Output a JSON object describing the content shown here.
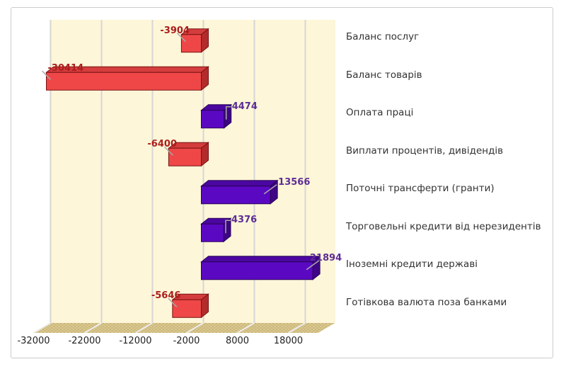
{
  "chart_data": {
    "type": "bar",
    "orientation": "horizontal",
    "style_3d": true,
    "title": "",
    "legend": "none",
    "grid": "vertical-gridlines",
    "categories": [
      "Баланс послуг",
      "Баланс товарів",
      "Оплата праці",
      "Виплати процентів, дивідендів",
      "Поточні трансферти (гранти)",
      "Торговельні кредити від нерезидентів",
      "Іноземні кредити державі",
      "Готівкова валюта поза банками"
    ],
    "values": [
      -3904,
      -30414,
      4474,
      -6400,
      13566,
      4376,
      21894,
      -5646
    ],
    "value_labels": [
      "-3904",
      "-30414",
      "4474",
      "-6400",
      "13566",
      "4376",
      "21894",
      "-5646"
    ],
    "x_ticks": [
      -32000,
      -22000,
      -12000,
      -2000,
      8000,
      18000
    ],
    "x_tick_labels": [
      "-32000",
      "-22000",
      "-12000",
      "-2000",
      "8000",
      "18000"
    ],
    "xlim": [
      -32000,
      24000
    ],
    "colors": {
      "negative_front": "#ef4747",
      "negative_top": "#d43d3d",
      "negative_side": "#b32b2b",
      "negative_stroke": "#7a1212",
      "positive_front": "#5b08c3",
      "positive_top": "#4b07a0",
      "positive_side": "#3e0685",
      "positive_stroke": "#2a0458",
      "negative_label": "#ab1d1d",
      "positive_label": "#5d2d96",
      "wall_bg": "#fdf6d8",
      "wall_dot": "#f2d78c",
      "floor_bg": "#d9c88f",
      "floor_dot": "#c9b478",
      "gridline": "#d6d6d6",
      "floor_gridline": "#ededed",
      "leader_line": "#a9a9a9",
      "category_label": "#333333",
      "tick_label": "#1f1f1f",
      "frame_border": "#cbcbcb"
    }
  }
}
